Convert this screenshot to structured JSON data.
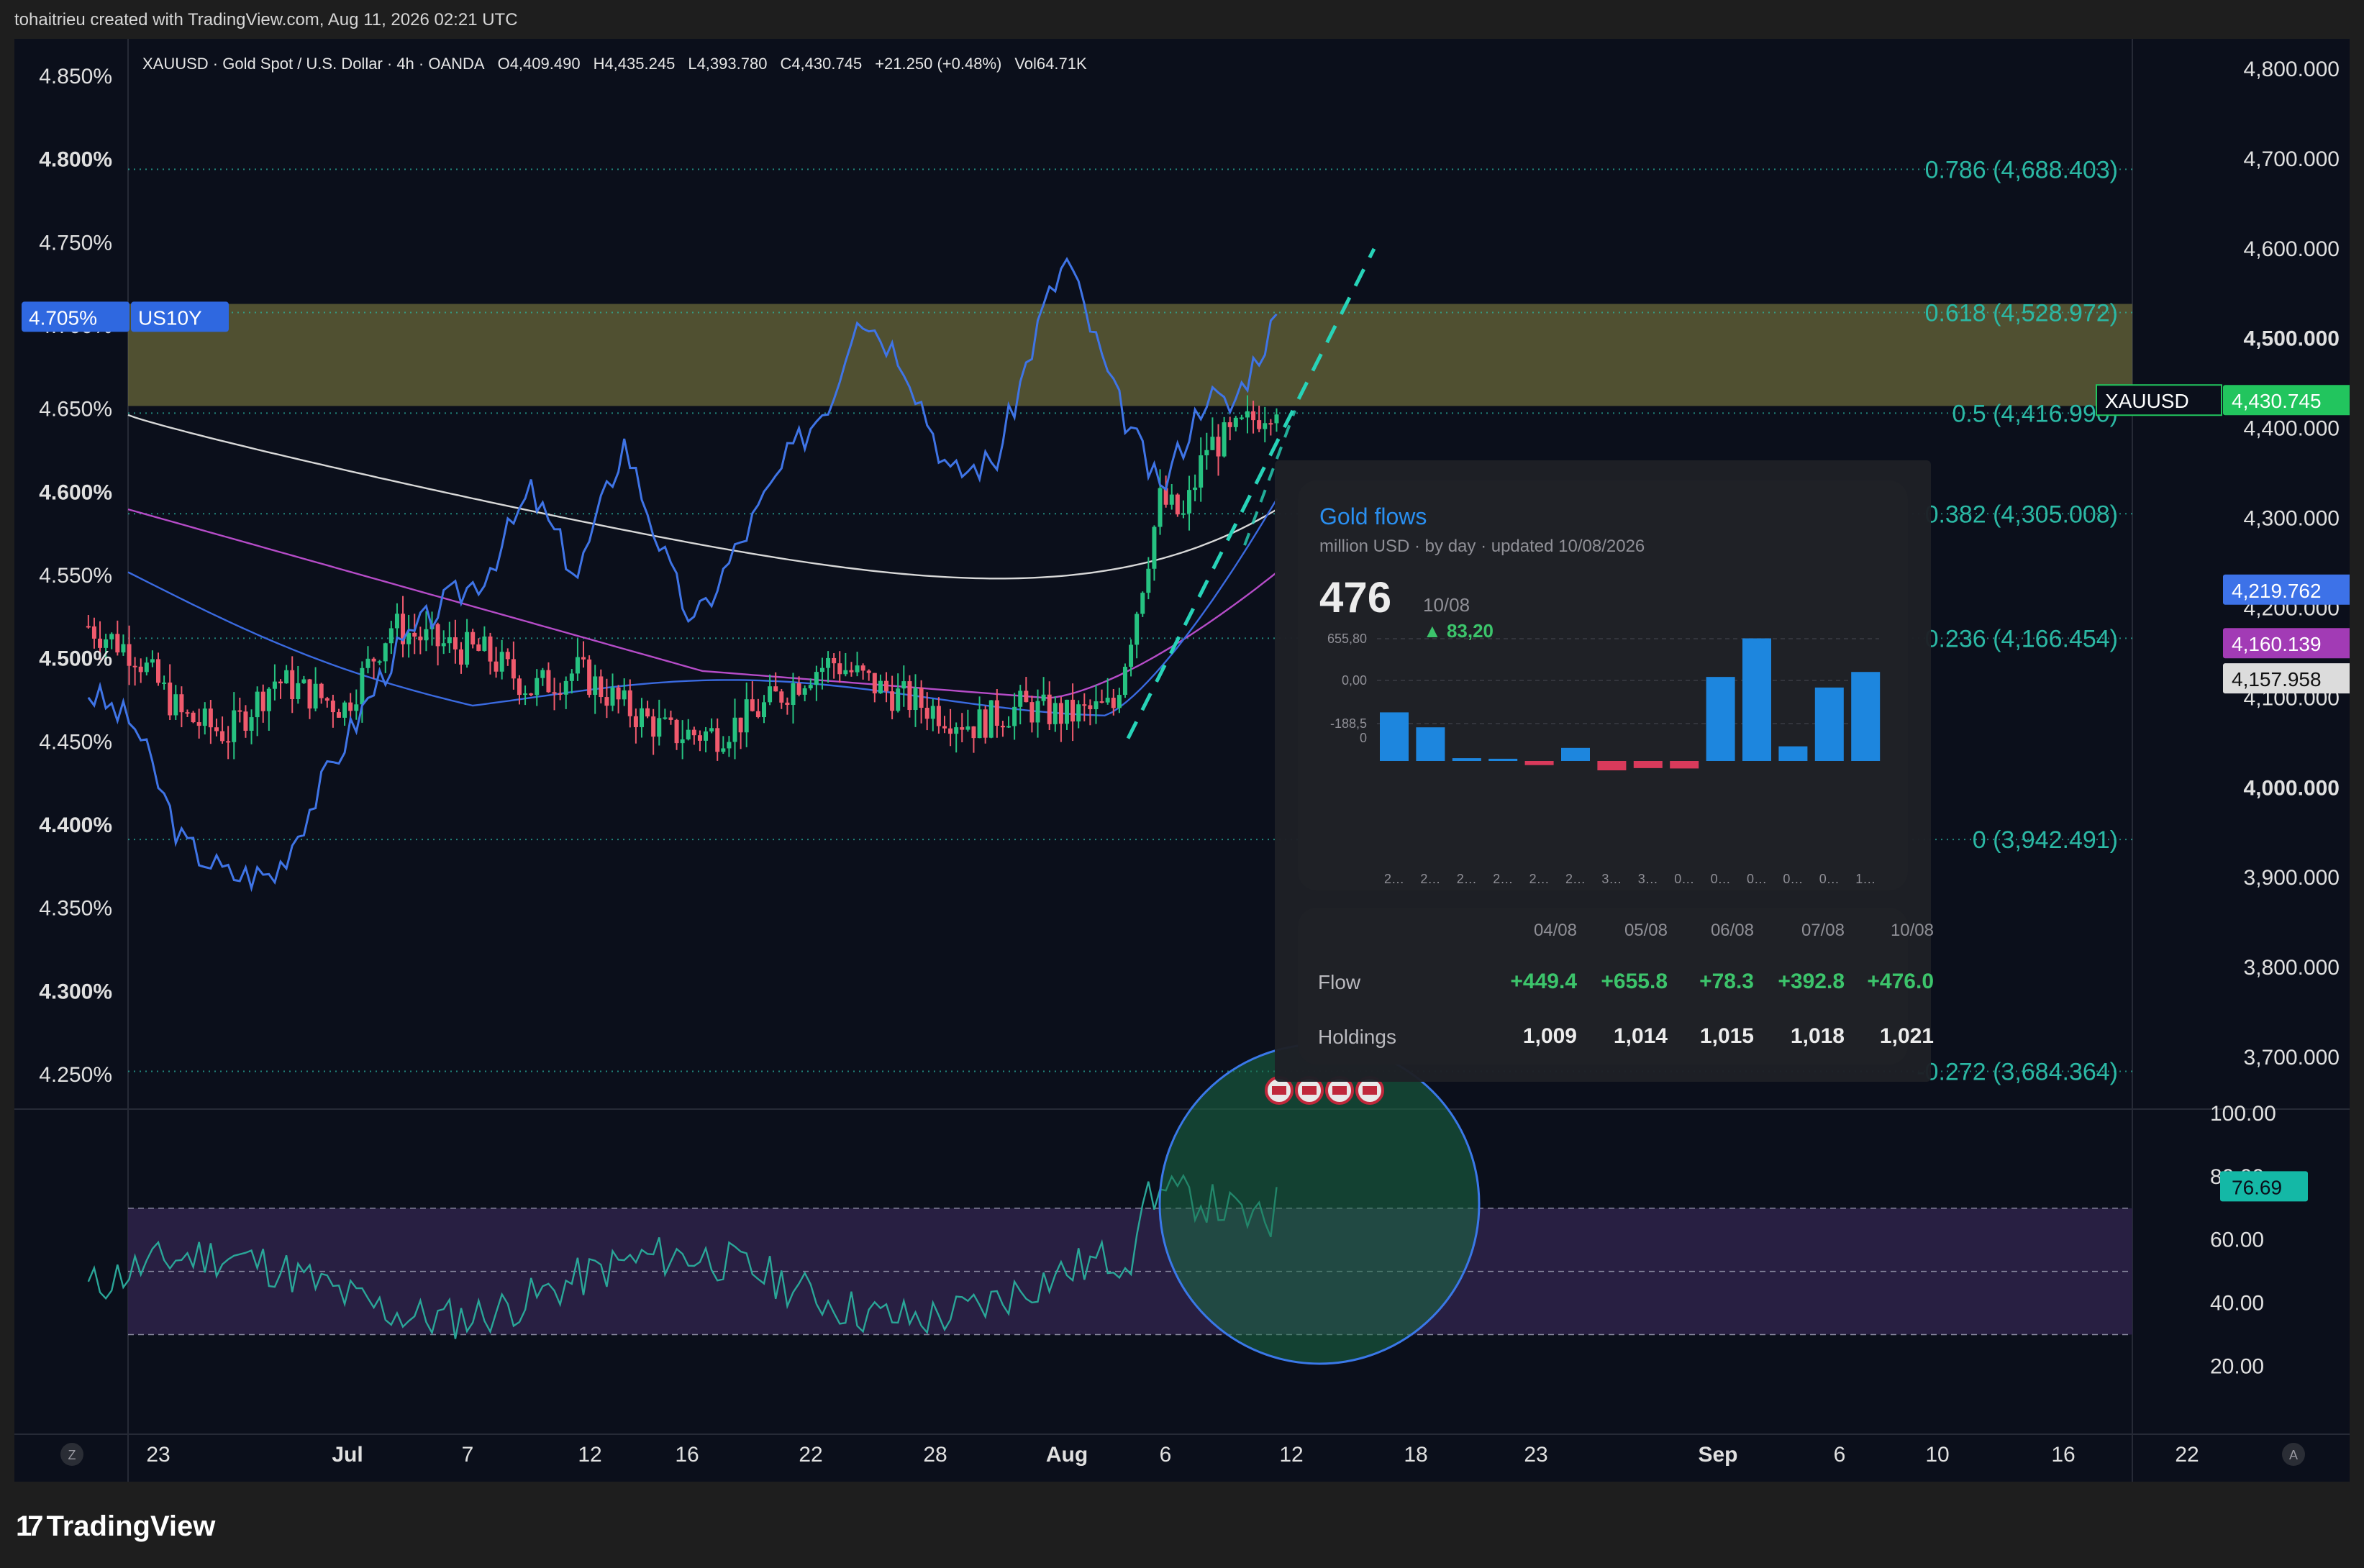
{
  "header": {
    "text": "tohaitrieu created with TradingView.com, Aug 11, 2026 02:21 UTC"
  },
  "footer": {
    "brand": "TradingView",
    "logo_mark": "17"
  },
  "legend": {
    "symbol": "XAUUSD · Gold Spot / U.S. Dollar · 4h · OANDA",
    "open": "O4,409.490",
    "high": "H4,435.245",
    "low": "L4,393.780",
    "close": "C4,430.745",
    "change": "+21.250 (+0.48%)",
    "volume": "Vol64.71K"
  },
  "colors": {
    "background": "#0b0f1b",
    "up": "#26c281",
    "down": "#f05a6d",
    "us10y": "#3f74e6",
    "fib": "#2bb8a4",
    "zone": "#6b6a3a",
    "ma200": "#d8d8d8",
    "ma_purple": "#b64cc8",
    "ma_blue": "#3a6ae0",
    "rsi": "#2aa698",
    "flows_bar_up": "#1d86de",
    "flows_bar_down": "#d93a5b"
  },
  "left_axis": {
    "ticks": [
      "4.850%",
      "4.800%",
      "4.750%",
      "4.700%",
      "4.650%",
      "4.600%",
      "4.550%",
      "4.500%",
      "4.450%",
      "4.400%",
      "4.350%",
      "4.300%",
      "4.250%"
    ],
    "bold": [
      "4.800%",
      "4.600%",
      "4.500%",
      "4.400%",
      "4.300%"
    ],
    "label": {
      "value": "4.705%",
      "name": "US10Y"
    }
  },
  "right_axis": {
    "ticks": [
      "4,800.000",
      "4,700.000",
      "4,600.000",
      "4,500.000",
      "4,400.000",
      "4,300.000",
      "4,200.000",
      "4,100.000",
      "4,000.000",
      "3,900.000",
      "3,800.000",
      "3,700.000"
    ],
    "bold": [
      "4,500.000",
      "4,000.000"
    ],
    "labels": [
      {
        "text": "XAUUSD",
        "value": "4,430.745",
        "color": "#22c55e"
      },
      {
        "text": "",
        "value": "4,219.762",
        "color": "#3d72e8"
      },
      {
        "text": "",
        "value": "4,160.139",
        "color": "#a23bb5"
      },
      {
        "text": "",
        "value": "4,157.958",
        "color": "#dcdcdc"
      }
    ]
  },
  "rsi_axis": {
    "ticks": [
      "100.00",
      "80.00",
      "60.00",
      "40.00",
      "20.00"
    ],
    "value": "76.69"
  },
  "x_axis": {
    "labels": [
      "23",
      "Jul",
      "7",
      "12",
      "16",
      "22",
      "28",
      "Aug",
      "6",
      "12",
      "18",
      "23",
      "Sep",
      "6",
      "10",
      "16",
      "22"
    ],
    "bold": [
      "Jul",
      "Aug",
      "Sep"
    ],
    "corner_left": "Z",
    "corner_right": "A"
  },
  "fib_levels": [
    {
      "label": "0.786 (4,688.403)",
      "price": 4688.403
    },
    {
      "label": "0.618 (4,528.972)",
      "price": 4528.972
    },
    {
      "label": "0.5 (4,416.990)",
      "price": 4416.99
    },
    {
      "label": "0.382 (4,305.008)",
      "price": 4305.008
    },
    {
      "label": "0.236 (4,166.454)",
      "price": 4166.454
    },
    {
      "label": "0 (3,942.491)",
      "price": 3942.491
    },
    {
      "label": "-0.272 (3,684.364)",
      "price": 3684.364
    }
  ],
  "gold_flows": {
    "title": "Gold flows",
    "subtitle": "million USD · by day · updated 10/08/2026",
    "latest_value": "476",
    "latest_date": "10/08",
    "latest_delta": "▲ 83,20",
    "y_labels": [
      "655,80",
      "0,00",
      "-188,5",
      "0"
    ],
    "x_labels": [
      "2…",
      "2…",
      "2…",
      "2…",
      "2…",
      "2…",
      "3…",
      "3…",
      "0…",
      "0…",
      "0…",
      "0…",
      "0…",
      "1…"
    ],
    "bars": [
      260,
      180,
      15,
      12,
      -22,
      70,
      -50,
      -38,
      -40,
      449.4,
      655.8,
      78.3,
      392.8,
      476.0
    ],
    "table": {
      "dates": [
        "04/08",
        "05/08",
        "06/08",
        "07/08",
        "10/08"
      ],
      "flow_label": "Flow",
      "flow": [
        "+449.4",
        "+655.8",
        "+78.3",
        "+392.8",
        "+476.0"
      ],
      "holdings_label": "Holdings",
      "holdings": [
        "1,009",
        "1,014",
        "1,015",
        "1,018",
        "1,021"
      ]
    }
  },
  "chart_data": {
    "type": "line",
    "title": "XAUUSD · Gold Spot / U.S. Dollar · 4h · OANDA",
    "xlabel": "",
    "ylabel": "",
    "ylim": [
      3650,
      4830
    ],
    "ylim_secondary": [
      4.225,
      4.875
    ],
    "series": [
      {
        "name": "XAUUSD",
        "axis": "right",
        "points": [
          [
            "Jun 20",
            4180
          ],
          [
            "Jun 22",
            4150
          ],
          [
            "Jun 24",
            4080
          ],
          [
            "Jun 26",
            4060
          ],
          [
            "Jun 28",
            4120
          ],
          [
            "Jul 1",
            4090
          ],
          [
            "Jul 3",
            4180
          ],
          [
            "Jul 5",
            4160
          ],
          [
            "Jul 7",
            4150
          ],
          [
            "Jul 9",
            4110
          ],
          [
            "Jul 11",
            4130
          ],
          [
            "Jul 13",
            4090
          ],
          [
            "Jul 15",
            4060
          ],
          [
            "Jul 17",
            4060
          ],
          [
            "Jul 19",
            4090
          ],
          [
            "Jul 21",
            4130
          ],
          [
            "Jul 22",
            4140
          ],
          [
            "Jul 24",
            4110
          ],
          [
            "Jul 26",
            4090
          ],
          [
            "Jul 28",
            4070
          ],
          [
            "Jul 30",
            4090
          ],
          [
            "Aug 1",
            4080
          ],
          [
            "Aug 3",
            4090
          ],
          [
            "Aug 4",
            4200
          ],
          [
            "Aug 5",
            4320
          ],
          [
            "Aug 6",
            4300
          ],
          [
            "Aug 7",
            4380
          ],
          [
            "Aug 8",
            4390
          ],
          [
            "Aug 10",
            4430.745
          ]
        ]
      },
      {
        "name": "US10Y",
        "axis": "left",
        "points": [
          [
            "Jun 20",
            4.48
          ],
          [
            "Jun 22",
            4.46
          ],
          [
            "Jun 24",
            4.39
          ],
          [
            "Jun 26",
            4.37
          ],
          [
            "Jun 28",
            4.37
          ],
          [
            "Jul 1",
            4.45
          ],
          [
            "Jul 3",
            4.5
          ],
          [
            "Jul 5",
            4.53
          ],
          [
            "Jul 7",
            4.55
          ],
          [
            "Jul 9",
            4.6
          ],
          [
            "Jul 11",
            4.55
          ],
          [
            "Jul 13",
            4.63
          ],
          [
            "Jul 15",
            4.55
          ],
          [
            "Jul 16",
            4.52
          ],
          [
            "Jul 18",
            4.57
          ],
          [
            "Jul 20",
            4.62
          ],
          [
            "Jul 22",
            4.66
          ],
          [
            "Jul 23",
            4.71
          ],
          [
            "Jul 25",
            4.68
          ],
          [
            "Jul 27",
            4.61
          ],
          [
            "Jul 29",
            4.62
          ],
          [
            "Jul 31",
            4.71
          ],
          [
            "Aug 1",
            4.74
          ],
          [
            "Aug 3",
            4.66
          ],
          [
            "Aug 5",
            4.6
          ],
          [
            "Aug 7",
            4.66
          ],
          [
            "Aug 8",
            4.65
          ],
          [
            "Aug 10",
            4.705
          ]
        ]
      }
    ],
    "rsi": {
      "ylim": [
        0,
        100
      ],
      "bands": [
        30,
        50,
        70
      ],
      "last": 76.69
    }
  }
}
